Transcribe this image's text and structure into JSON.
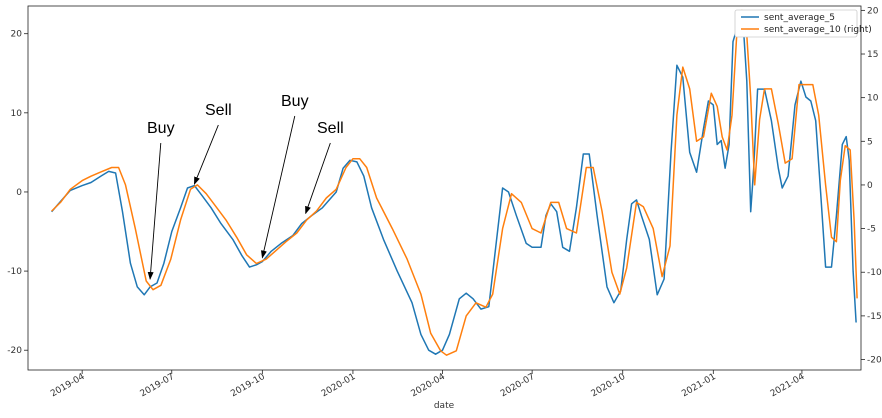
{
  "chart_data": {
    "type": "line",
    "title": "",
    "xlabel": "date",
    "ylabel_left": "",
    "ylabel_right": "",
    "x_ticks": [
      "2019-04",
      "2019-07",
      "2019-10",
      "2020-01",
      "2020-04",
      "2020-07",
      "2020-10",
      "2021-01",
      "2021-04"
    ],
    "x_tick_dates": [
      "2019-04-01",
      "2019-07-01",
      "2019-10-01",
      "2020-01-01",
      "2020-04-01",
      "2020-07-01",
      "2020-10-01",
      "2021-01-01",
      "2021-04-01"
    ],
    "xlim": [
      "2019-02-05",
      "2021-05-31"
    ],
    "ylim_left": [
      -22.5,
      23.5
    ],
    "yticks_left": [
      -20,
      -10,
      0,
      10,
      20
    ],
    "ylim_right": [
      -21.2,
      20.5
    ],
    "yticks_right": [
      -20,
      -15,
      -10,
      -5,
      0,
      5,
      10,
      15,
      20
    ],
    "grid": false,
    "legend_position": "top-right",
    "series": [
      {
        "name": "sent_average_5",
        "axis": "left",
        "color": "#1f77b4",
        "points": [
          [
            "2019-03-01",
            -2.5
          ],
          [
            "2019-03-10",
            -1.2
          ],
          [
            "2019-03-20",
            0.2
          ],
          [
            "2019-04-01",
            0.8
          ],
          [
            "2019-04-10",
            1.2
          ],
          [
            "2019-04-20",
            2.0
          ],
          [
            "2019-04-28",
            2.6
          ],
          [
            "2019-05-05",
            2.4
          ],
          [
            "2019-05-12",
            -2.5
          ],
          [
            "2019-05-20",
            -9.0
          ],
          [
            "2019-05-27",
            -12.0
          ],
          [
            "2019-06-03",
            -13.0
          ],
          [
            "2019-06-09",
            -12.0
          ],
          [
            "2019-06-16",
            -11.5
          ],
          [
            "2019-06-23",
            -9.0
          ],
          [
            "2019-07-01",
            -5.0
          ],
          [
            "2019-07-10",
            -2.0
          ],
          [
            "2019-07-17",
            0.5
          ],
          [
            "2019-07-24",
            0.8
          ],
          [
            "2019-08-01",
            -0.5
          ],
          [
            "2019-08-10",
            -2.0
          ],
          [
            "2019-08-20",
            -4.0
          ],
          [
            "2019-09-01",
            -6.0
          ],
          [
            "2019-09-10",
            -8.0
          ],
          [
            "2019-09-18",
            -9.5
          ],
          [
            "2019-09-25",
            -9.2
          ],
          [
            "2019-10-01",
            -8.8
          ],
          [
            "2019-10-10",
            -7.5
          ],
          [
            "2019-10-20",
            -6.5
          ],
          [
            "2019-11-01",
            -5.5
          ],
          [
            "2019-11-10",
            -4.0
          ],
          [
            "2019-11-20",
            -3.0
          ],
          [
            "2019-12-01",
            -2.0
          ],
          [
            "2019-12-15",
            0.0
          ],
          [
            "2019-12-22",
            3.0
          ],
          [
            "2019-12-29",
            4.0
          ],
          [
            "2020-01-05",
            3.8
          ],
          [
            "2020-01-12",
            2.0
          ],
          [
            "2020-01-20",
            -2.0
          ],
          [
            "2020-02-01",
            -6.0
          ],
          [
            "2020-02-15",
            -10.0
          ],
          [
            "2020-03-01",
            -14.0
          ],
          [
            "2020-03-10",
            -18.0
          ],
          [
            "2020-03-18",
            -20.0
          ],
          [
            "2020-03-25",
            -20.5
          ],
          [
            "2020-04-01",
            -20.0
          ],
          [
            "2020-04-08",
            -18.0
          ],
          [
            "2020-04-18",
            -13.5
          ],
          [
            "2020-04-25",
            -12.8
          ],
          [
            "2020-05-02",
            -13.5
          ],
          [
            "2020-05-10",
            -14.8
          ],
          [
            "2020-05-18",
            -14.5
          ],
          [
            "2020-05-25",
            -7.0
          ],
          [
            "2020-06-01",
            0.5
          ],
          [
            "2020-06-07",
            0.0
          ],
          [
            "2020-06-15",
            -3.0
          ],
          [
            "2020-06-25",
            -6.5
          ],
          [
            "2020-07-01",
            -7.0
          ],
          [
            "2020-07-10",
            -7.0
          ],
          [
            "2020-07-15",
            -3.0
          ],
          [
            "2020-07-20",
            -1.5
          ],
          [
            "2020-07-26",
            -2.5
          ],
          [
            "2020-08-01",
            -7.0
          ],
          [
            "2020-08-08",
            -7.5
          ],
          [
            "2020-08-15",
            -2.0
          ],
          [
            "2020-08-22",
            4.8
          ],
          [
            "2020-08-28",
            4.8
          ],
          [
            "2020-09-05",
            -3.0
          ],
          [
            "2020-09-15",
            -12.0
          ],
          [
            "2020-09-22",
            -14.0
          ],
          [
            "2020-09-29",
            -12.5
          ],
          [
            "2020-10-05",
            -6.0
          ],
          [
            "2020-10-10",
            -1.5
          ],
          [
            "2020-10-15",
            -1.0
          ],
          [
            "2020-10-20",
            -3.0
          ],
          [
            "2020-10-28",
            -6.0
          ],
          [
            "2020-11-05",
            -13.0
          ],
          [
            "2020-11-12",
            -11.0
          ],
          [
            "2020-11-19",
            5.0
          ],
          [
            "2020-11-25",
            16.0
          ],
          [
            "2020-12-01",
            14.5
          ],
          [
            "2020-12-08",
            5.0
          ],
          [
            "2020-12-15",
            2.5
          ],
          [
            "2020-12-22",
            8.0
          ],
          [
            "2020-12-27",
            11.5
          ],
          [
            "2021-01-01",
            11.0
          ],
          [
            "2021-01-05",
            6.0
          ],
          [
            "2021-01-09",
            6.5
          ],
          [
            "2021-01-13",
            3.0
          ],
          [
            "2021-01-17",
            6.0
          ],
          [
            "2021-01-21",
            19.0
          ],
          [
            "2021-01-27",
            21.5
          ],
          [
            "2021-02-01",
            20.0
          ],
          [
            "2021-02-04",
            14.0
          ],
          [
            "2021-02-08",
            -2.5
          ],
          [
            "2021-02-11",
            3.0
          ],
          [
            "2021-02-15",
            13.0
          ],
          [
            "2021-02-22",
            13.0
          ],
          [
            "2021-03-01",
            9.0
          ],
          [
            "2021-03-08",
            3.0
          ],
          [
            "2021-03-12",
            0.5
          ],
          [
            "2021-03-18",
            2.0
          ],
          [
            "2021-03-25",
            11.0
          ],
          [
            "2021-03-31",
            14.0
          ],
          [
            "2021-04-05",
            12.0
          ],
          [
            "2021-04-10",
            11.5
          ],
          [
            "2021-04-15",
            9.0
          ],
          [
            "2021-04-20",
            0.0
          ],
          [
            "2021-04-25",
            -9.5
          ],
          [
            "2021-05-01",
            -9.5
          ],
          [
            "2021-05-06",
            -3.0
          ],
          [
            "2021-05-12",
            6.0
          ],
          [
            "2021-05-16",
            7.0
          ],
          [
            "2021-05-19",
            4.0
          ],
          [
            "2021-05-23",
            -10.0
          ],
          [
            "2021-05-26",
            -16.5
          ]
        ]
      },
      {
        "name": "sent_average_10 (right)",
        "axis": "right",
        "color": "#ff7f0e",
        "points": [
          [
            "2019-03-01",
            -3.0
          ],
          [
            "2019-03-10",
            -2.0
          ],
          [
            "2019-03-20",
            -0.5
          ],
          [
            "2019-04-01",
            0.5
          ],
          [
            "2019-04-10",
            1.0
          ],
          [
            "2019-04-20",
            1.5
          ],
          [
            "2019-05-01",
            2.0
          ],
          [
            "2019-05-08",
            2.0
          ],
          [
            "2019-05-15",
            0.0
          ],
          [
            "2019-05-25",
            -5.0
          ],
          [
            "2019-06-05",
            -11.0
          ],
          [
            "2019-06-12",
            -12.0
          ],
          [
            "2019-06-20",
            -11.5
          ],
          [
            "2019-06-30",
            -8.5
          ],
          [
            "2019-07-10",
            -4.0
          ],
          [
            "2019-07-20",
            -0.5
          ],
          [
            "2019-07-27",
            0.0
          ],
          [
            "2019-08-05",
            -1.0
          ],
          [
            "2019-08-15",
            -2.5
          ],
          [
            "2019-08-25",
            -4.0
          ],
          [
            "2019-09-05",
            -6.0
          ],
          [
            "2019-09-15",
            -8.0
          ],
          [
            "2019-09-25",
            -9.0
          ],
          [
            "2019-10-05",
            -8.5
          ],
          [
            "2019-10-15",
            -7.5
          ],
          [
            "2019-10-25",
            -6.5
          ],
          [
            "2019-11-05",
            -5.5
          ],
          [
            "2019-11-15",
            -4.0
          ],
          [
            "2019-11-25",
            -3.0
          ],
          [
            "2019-12-05",
            -1.5
          ],
          [
            "2019-12-15",
            -0.5
          ],
          [
            "2019-12-25",
            2.0
          ],
          [
            "2020-01-01",
            3.0
          ],
          [
            "2020-01-08",
            3.0
          ],
          [
            "2020-01-15",
            2.0
          ],
          [
            "2020-01-25",
            -1.5
          ],
          [
            "2020-02-10",
            -5.0
          ],
          [
            "2020-02-25",
            -8.5
          ],
          [
            "2020-03-10",
            -12.5
          ],
          [
            "2020-03-20",
            -17.0
          ],
          [
            "2020-03-30",
            -19.0
          ],
          [
            "2020-04-05",
            -19.5
          ],
          [
            "2020-04-15",
            -19.0
          ],
          [
            "2020-04-25",
            -15.0
          ],
          [
            "2020-05-05",
            -13.5
          ],
          [
            "2020-05-15",
            -14.0
          ],
          [
            "2020-05-22",
            -12.5
          ],
          [
            "2020-06-01",
            -5.0
          ],
          [
            "2020-06-10",
            -1.0
          ],
          [
            "2020-06-20",
            -2.0
          ],
          [
            "2020-07-01",
            -5.0
          ],
          [
            "2020-07-10",
            -5.5
          ],
          [
            "2020-07-20",
            -2.0
          ],
          [
            "2020-07-28",
            -2.0
          ],
          [
            "2020-08-05",
            -5.0
          ],
          [
            "2020-08-15",
            -5.5
          ],
          [
            "2020-08-25",
            2.0
          ],
          [
            "2020-09-01",
            2.0
          ],
          [
            "2020-09-10",
            -3.0
          ],
          [
            "2020-09-20",
            -10.0
          ],
          [
            "2020-09-28",
            -12.5
          ],
          [
            "2020-10-05",
            -9.5
          ],
          [
            "2020-10-15",
            -2.0
          ],
          [
            "2020-10-22",
            -2.5
          ],
          [
            "2020-11-01",
            -5.0
          ],
          [
            "2020-11-10",
            -10.5
          ],
          [
            "2020-11-18",
            -7.0
          ],
          [
            "2020-11-25",
            8.0
          ],
          [
            "2020-12-01",
            13.5
          ],
          [
            "2020-12-08",
            11.0
          ],
          [
            "2020-12-15",
            5.0
          ],
          [
            "2020-12-22",
            5.5
          ],
          [
            "2020-12-30",
            10.5
          ],
          [
            "2021-01-05",
            9.0
          ],
          [
            "2021-01-10",
            5.5
          ],
          [
            "2021-01-15",
            4.0
          ],
          [
            "2021-01-20",
            8.0
          ],
          [
            "2021-01-25",
            17.5
          ],
          [
            "2021-01-30",
            20.0
          ],
          [
            "2021-02-03",
            19.0
          ],
          [
            "2021-02-08",
            10.0
          ],
          [
            "2021-02-12",
            0.0
          ],
          [
            "2021-02-17",
            7.5
          ],
          [
            "2021-02-22",
            11.0
          ],
          [
            "2021-03-01",
            11.0
          ],
          [
            "2021-03-08",
            7.0
          ],
          [
            "2021-03-15",
            2.5
          ],
          [
            "2021-03-22",
            3.0
          ],
          [
            "2021-03-29",
            11.5
          ],
          [
            "2021-04-05",
            11.5
          ],
          [
            "2021-04-12",
            11.5
          ],
          [
            "2021-04-18",
            8.0
          ],
          [
            "2021-04-25",
            0.0
          ],
          [
            "2021-05-01",
            -6.0
          ],
          [
            "2021-05-06",
            -6.5
          ],
          [
            "2021-05-10",
            0.5
          ],
          [
            "2021-05-15",
            4.5
          ],
          [
            "2021-05-20",
            4.0
          ],
          [
            "2021-05-24",
            -4.0
          ],
          [
            "2021-05-27",
            -13.0
          ]
        ]
      }
    ],
    "annotations": [
      {
        "label": "Buy",
        "series": "sent_average_5",
        "target": [
          "2019-06-09",
          -11.0
        ]
      },
      {
        "label": "Sell",
        "series": "sent_average_5",
        "target": [
          "2019-07-24",
          1.0
        ]
      },
      {
        "label": "Buy",
        "series": "sent_average_5",
        "target": [
          "2019-10-01",
          -8.3
        ]
      },
      {
        "label": "Sell",
        "series": "sent_average_5",
        "target": [
          "2019-11-14",
          -2.7
        ]
      }
    ]
  }
}
